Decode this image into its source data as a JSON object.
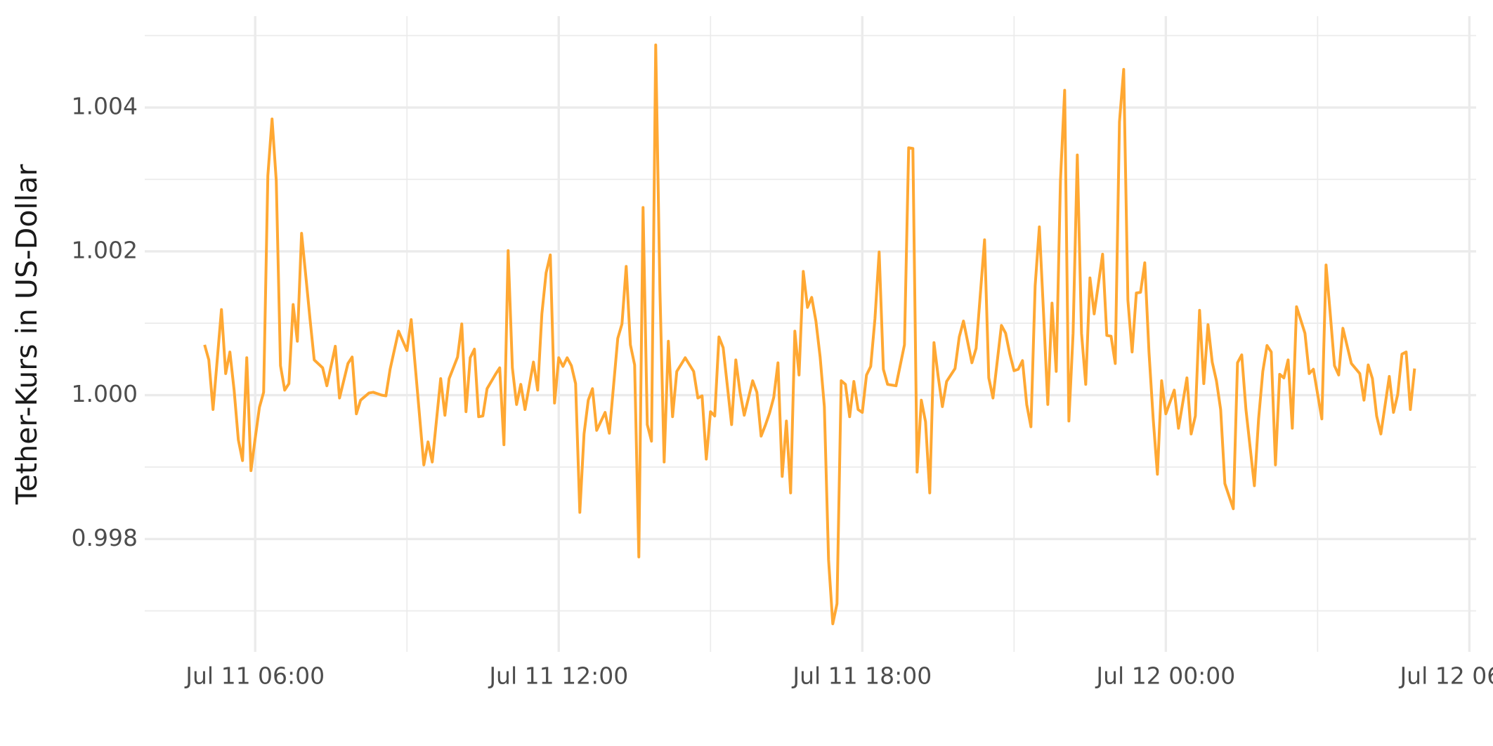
{
  "chart_data": {
    "type": "line",
    "y_label": "Tether-Kurs in US-Dollar",
    "x": [
      "Jul 11 05:00",
      "Jul 11 05:05",
      "Jul 11 05:10",
      "Jul 11 05:20",
      "Jul 11 05:25",
      "Jul 11 05:30",
      "Jul 11 05:35",
      "Jul 11 05:40",
      "Jul 11 05:45",
      "Jul 11 05:50",
      "Jul 11 05:55",
      "Jul 11 06:00",
      "Jul 11 06:05",
      "Jul 11 06:10",
      "Jul 11 06:15",
      "Jul 11 06:20",
      "Jul 11 06:25",
      "Jul 11 06:30",
      "Jul 11 06:35",
      "Jul 11 06:40",
      "Jul 11 06:45",
      "Jul 11 06:50",
      "Jul 11 06:55",
      "Jul 11 07:00",
      "Jul 11 07:05",
      "Jul 11 07:10",
      "Jul 11 07:20",
      "Jul 11 07:25",
      "Jul 11 07:35",
      "Jul 11 07:40",
      "Jul 11 07:50",
      "Jul 11 07:55",
      "Jul 11 08:00",
      "Jul 11 08:05",
      "Jul 11 08:15",
      "Jul 11 08:20",
      "Jul 11 08:30",
      "Jul 11 08:35",
      "Jul 11 08:40",
      "Jul 11 08:50",
      "Jul 11 09:00",
      "Jul 11 09:05",
      "Jul 11 09:20",
      "Jul 11 09:25",
      "Jul 11 09:30",
      "Jul 11 09:40",
      "Jul 11 09:45",
      "Jul 11 09:50",
      "Jul 11 10:00",
      "Jul 11 10:05",
      "Jul 11 10:10",
      "Jul 11 10:15",
      "Jul 11 10:20",
      "Jul 11 10:25",
      "Jul 11 10:30",
      "Jul 11 10:35",
      "Jul 11 10:45",
      "Jul 11 10:50",
      "Jul 11 10:55",
      "Jul 11 11:00",
      "Jul 11 11:05",
      "Jul 11 11:10",
      "Jul 11 11:15",
      "Jul 11 11:20",
      "Jul 11 11:30",
      "Jul 11 11:35",
      "Jul 11 11:40",
      "Jul 11 11:45",
      "Jul 11 11:50",
      "Jul 11 11:55",
      "Jul 11 12:00",
      "Jul 11 12:05",
      "Jul 11 12:10",
      "Jul 11 12:15",
      "Jul 11 12:20",
      "Jul 11 12:25",
      "Jul 11 12:30",
      "Jul 11 12:35",
      "Jul 11 12:40",
      "Jul 11 12:45",
      "Jul 11 12:55",
      "Jul 11 13:00",
      "Jul 11 13:10",
      "Jul 11 13:15",
      "Jul 11 13:20",
      "Jul 11 13:25",
      "Jul 11 13:30",
      "Jul 11 13:35",
      "Jul 11 13:40",
      "Jul 11 13:45",
      "Jul 11 13:50",
      "Jul 11 13:55",
      "Jul 11 14:00",
      "Jul 11 14:05",
      "Jul 11 14:10",
      "Jul 11 14:15",
      "Jul 11 14:20",
      "Jul 11 14:30",
      "Jul 11 14:40",
      "Jul 11 14:45",
      "Jul 11 14:50",
      "Jul 11 14:55",
      "Jul 11 15:00",
      "Jul 11 15:05",
      "Jul 11 15:10",
      "Jul 11 15:15",
      "Jul 11 15:25",
      "Jul 11 15:30",
      "Jul 11 15:35",
      "Jul 11 15:40",
      "Jul 11 15:50",
      "Jul 11 15:55",
      "Jul 11 16:00",
      "Jul 11 16:05",
      "Jul 11 16:10",
      "Jul 11 16:15",
      "Jul 11 16:20",
      "Jul 11 16:25",
      "Jul 11 16:30",
      "Jul 11 16:35",
      "Jul 11 16:40",
      "Jul 11 16:45",
      "Jul 11 16:50",
      "Jul 11 16:55",
      "Jul 11 17:00",
      "Jul 11 17:05",
      "Jul 11 17:10",
      "Jul 11 17:15",
      "Jul 11 17:20",
      "Jul 11 17:25",
      "Jul 11 17:30",
      "Jul 11 17:35",
      "Jul 11 17:40",
      "Jul 11 17:45",
      "Jul 11 17:50",
      "Jul 11 17:55",
      "Jul 11 18:00",
      "Jul 11 18:05",
      "Jul 11 18:10",
      "Jul 11 18:15",
      "Jul 11 18:20",
      "Jul 11 18:25",
      "Jul 11 18:30",
      "Jul 11 18:40",
      "Jul 11 18:50",
      "Jul 11 18:55",
      "Jul 11 19:00",
      "Jul 11 19:05",
      "Jul 11 19:10",
      "Jul 11 19:15",
      "Jul 11 19:20",
      "Jul 11 19:25",
      "Jul 11 19:30",
      "Jul 11 19:35",
      "Jul 11 19:40",
      "Jul 11 19:50",
      "Jul 11 19:55",
      "Jul 11 20:00",
      "Jul 11 20:10",
      "Jul 11 20:15",
      "Jul 11 20:25",
      "Jul 11 20:30",
      "Jul 11 20:35",
      "Jul 11 20:45",
      "Jul 11 20:50",
      "Jul 11 20:55",
      "Jul 11 21:00",
      "Jul 11 21:05",
      "Jul 11 21:10",
      "Jul 11 21:15",
      "Jul 11 21:20",
      "Jul 11 21:25",
      "Jul 11 21:30",
      "Jul 11 21:35",
      "Jul 11 21:40",
      "Jul 11 21:45",
      "Jul 11 21:50",
      "Jul 11 21:55",
      "Jul 11 22:00",
      "Jul 11 22:05",
      "Jul 11 22:10",
      "Jul 11 22:15",
      "Jul 11 22:20",
      "Jul 11 22:25",
      "Jul 11 22:30",
      "Jul 11 22:35",
      "Jul 11 22:45",
      "Jul 11 22:50",
      "Jul 11 22:55",
      "Jul 11 23:00",
      "Jul 11 23:05",
      "Jul 11 23:10",
      "Jul 11 23:15",
      "Jul 11 23:20",
      "Jul 11 23:25",
      "Jul 11 23:30",
      "Jul 11 23:35",
      "Jul 11 23:40",
      "Jul 11 23:45",
      "Jul 11 23:50",
      "Jul 11 23:55",
      "Jul 12 00:00",
      "Jul 12 00:10",
      "Jul 12 00:15",
      "Jul 12 00:25",
      "Jul 12 00:30",
      "Jul 12 00:35",
      "Jul 12 00:40",
      "Jul 12 00:45",
      "Jul 12 00:50",
      "Jul 12 00:55",
      "Jul 12 01:00",
      "Jul 12 01:05",
      "Jul 12 01:10",
      "Jul 12 01:20",
      "Jul 12 01:25",
      "Jul 12 01:30",
      "Jul 12 01:35",
      "Jul 12 01:45",
      "Jul 12 01:50",
      "Jul 12 01:55",
      "Jul 12 02:00",
      "Jul 12 02:05",
      "Jul 12 02:10",
      "Jul 12 02:15",
      "Jul 12 02:20",
      "Jul 12 02:25",
      "Jul 12 02:30",
      "Jul 12 02:35",
      "Jul 12 02:45",
      "Jul 12 02:50",
      "Jul 12 02:55",
      "Jul 12 03:05",
      "Jul 12 03:10",
      "Jul 12 03:15",
      "Jul 12 03:20",
      "Jul 12 03:25",
      "Jul 12 03:30",
      "Jul 12 03:40",
      "Jul 12 03:50",
      "Jul 12 03:55",
      "Jul 12 04:00",
      "Jul 12 04:05",
      "Jul 12 04:10",
      "Jul 12 04:15",
      "Jul 12 04:25",
      "Jul 12 04:30",
      "Jul 12 04:35",
      "Jul 12 04:40",
      "Jul 12 04:45",
      "Jul 12 04:50",
      "Jul 12 04:55"
    ],
    "series": [
      {
        "color": "#ffa833",
        "values": [
          1.0007,
          1.00049,
          0.9998,
          1.00119,
          1.0003,
          1.0006,
          1.00007,
          0.99938,
          0.99909,
          1.00052,
          0.99895,
          0.9994,
          0.99983,
          1.00004,
          1.00305,
          1.00384,
          1.00298,
          1.00041,
          1.00007,
          1.00016,
          1.00126,
          1.00075,
          1.00225,
          1.00166,
          1.00106,
          1.00049,
          1.00038,
          1.00013,
          1.00068,
          0.99996,
          1.00044,
          1.00053,
          0.99974,
          0.99993,
          1.00003,
          1.00004,
          1.0,
          0.99999,
          1.00036,
          1.00089,
          1.00062,
          1.00105,
          0.99903,
          0.99935,
          0.99907,
          1.00023,
          0.99972,
          1.00023,
          1.00053,
          1.00099,
          0.99977,
          1.00052,
          1.00064,
          0.9997,
          0.99971,
          1.00009,
          1.00029,
          1.00038,
          0.99931,
          1.00201,
          1.00038,
          0.99987,
          1.00015,
          0.9998,
          1.00046,
          1.00007,
          1.00113,
          1.0017,
          1.00195,
          0.99989,
          1.00052,
          1.0004,
          1.00052,
          1.00041,
          1.00016,
          0.99837,
          0.99946,
          0.99993,
          1.00009,
          0.99951,
          0.99976,
          0.99947,
          1.00079,
          1.00099,
          1.00179,
          1.0007,
          1.00042,
          0.99775,
          1.00261,
          0.99959,
          0.99936,
          1.00487,
          1.00146,
          0.99907,
          1.00075,
          0.9997,
          1.00033,
          1.00052,
          1.00033,
          0.99996,
          0.99999,
          0.99911,
          0.99977,
          0.99971,
          1.00081,
          1.00066,
          0.99959,
          1.00049,
          1.00004,
          0.99972,
          1.0002,
          1.00004,
          0.99943,
          0.99958,
          0.99975,
          0.99997,
          1.00045,
          0.99887,
          0.99964,
          0.99864,
          1.00089,
          1.00028,
          1.00172,
          1.00122,
          1.00136,
          1.00103,
          1.00053,
          0.99984,
          0.99771,
          0.99682,
          0.9971,
          1.0002,
          1.00015,
          0.9997,
          1.00019,
          0.9998,
          0.99976,
          1.00028,
          1.0004,
          1.00106,
          1.00199,
          1.00036,
          1.00015,
          1.00013,
          1.0007,
          1.00344,
          1.00343,
          0.99893,
          0.99993,
          0.99963,
          0.99864,
          1.00073,
          1.00026,
          0.99984,
          1.00019,
          1.00037,
          1.00081,
          1.00103,
          1.00045,
          1.00065,
          1.00216,
          1.00024,
          0.99996,
          1.00097,
          1.00086,
          1.00057,
          1.00034,
          1.00036,
          1.00048,
          0.99987,
          0.99956,
          1.00152,
          1.00234,
          1.00113,
          0.99987,
          1.00128,
          1.00033,
          1.00298,
          1.00424,
          0.99964,
          1.00086,
          1.00334,
          1.00086,
          1.00015,
          1.00163,
          1.00113,
          1.00196,
          1.00083,
          1.00082,
          1.00044,
          1.0038,
          1.00453,
          1.00132,
          1.0006,
          1.00142,
          1.00143,
          1.00184,
          1.0006,
          0.99967,
          0.9989,
          1.0002,
          0.99974,
          1.00007,
          0.99954,
          1.00024,
          0.99946,
          0.99971,
          1.00118,
          1.00016,
          1.00098,
          1.00046,
          1.0002,
          0.9998,
          0.99877,
          0.99842,
          1.00045,
          1.00056,
          0.9998,
          0.99874,
          0.99967,
          1.00033,
          1.00069,
          1.0006,
          0.99903,
          1.00029,
          1.00024,
          1.00049,
          0.99954,
          1.00123,
          1.00086,
          1.0003,
          1.00036,
          0.99967,
          1.00181,
          1.00113,
          1.00041,
          1.00028,
          1.00093,
          1.00044,
          1.0003,
          0.99993,
          1.00042,
          1.00023,
          0.99971,
          0.99946,
          1.00026,
          0.99976,
          1.00001,
          1.00057,
          1.0006,
          0.9998,
          1.00037
        ]
      }
    ],
    "xlim": [
      "Jul 11 03:49",
      "Jul 12 06:08"
    ],
    "xticks": [
      "Jul 11 06:00",
      "Jul 11 12:00",
      "Jul 11 18:00",
      "Jul 12 00:00",
      "Jul 12 06:00"
    ],
    "ylim": [
      0.99643,
      1.00527
    ],
    "yticks": [
      0.998,
      {
        "value": 1,
        "label": "1.000"
      },
      1.002,
      1.004
    ],
    "grid": true
  }
}
